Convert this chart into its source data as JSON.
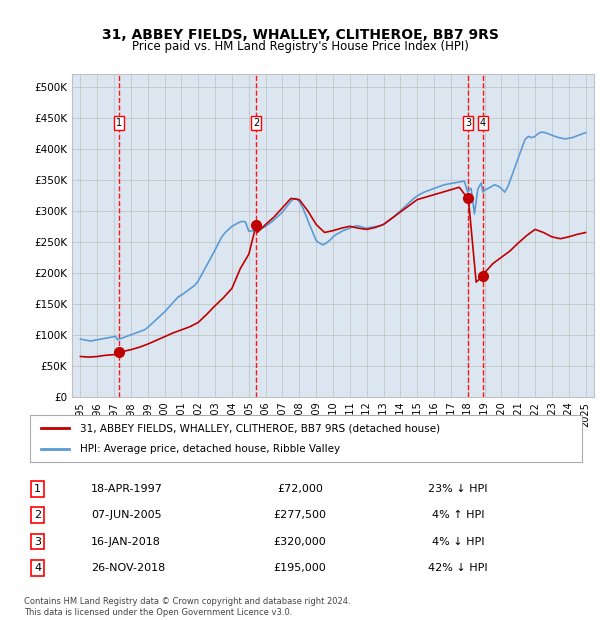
{
  "title": "31, ABBEY FIELDS, WHALLEY, CLITHEROE, BB7 9RS",
  "subtitle": "Price paid vs. HM Land Registry's House Price Index (HPI)",
  "legend_line1": "31, ABBEY FIELDS, WHALLEY, CLITHEROE, BB7 9RS (detached house)",
  "legend_line2": "HPI: Average price, detached house, Ribble Valley",
  "hpi_color": "#5b9bd5",
  "price_color": "#c00000",
  "sale_marker_color": "#c00000",
  "vline_color": "#ff0000",
  "background_color": "#dce6f1",
  "plot_bg": "#ffffff",
  "grid_color": "#c0c0c0",
  "ylim": [
    0,
    520000
  ],
  "yticks": [
    0,
    50000,
    100000,
    150000,
    200000,
    250000,
    300000,
    350000,
    400000,
    450000,
    500000
  ],
  "ytick_labels": [
    "£0",
    "£50K",
    "£100K",
    "£150K",
    "£200K",
    "£250K",
    "£300K",
    "£350K",
    "£400K",
    "£450K",
    "£500K"
  ],
  "xlim_start": 1994.5,
  "xlim_end": 2025.5,
  "xticks": [
    1995,
    1996,
    1997,
    1998,
    1999,
    2000,
    2001,
    2002,
    2003,
    2004,
    2005,
    2006,
    2007,
    2008,
    2009,
    2010,
    2011,
    2012,
    2013,
    2014,
    2015,
    2016,
    2017,
    2018,
    2019,
    2020,
    2021,
    2022,
    2023,
    2024,
    2025
  ],
  "sales": [
    {
      "label": "1",
      "date": 1997.3,
      "price": 72000,
      "text": "18-APR-1997",
      "price_str": "£72,000",
      "hpi_str": "23% ↓ HPI"
    },
    {
      "label": "2",
      "date": 2005.44,
      "price": 277500,
      "text": "07-JUN-2005",
      "price_str": "£277,500",
      "hpi_str": "4% ↑ HPI"
    },
    {
      "label": "3",
      "date": 2018.04,
      "price": 320000,
      "text": "16-JAN-2018",
      "price_str": "£320,000",
      "hpi_str": "4% ↓ HPI"
    },
    {
      "label": "4",
      "date": 2018.9,
      "price": 195000,
      "text": "26-NOV-2018",
      "price_str": "£195,000",
      "hpi_str": "42% ↓ HPI"
    }
  ],
  "footer": "Contains HM Land Registry data © Crown copyright and database right 2024.\nThis data is licensed under the Open Government Licence v3.0.",
  "hpi_data": {
    "years": [
      1995.0,
      1995.1,
      1995.2,
      1995.3,
      1995.4,
      1995.5,
      1995.6,
      1995.7,
      1995.8,
      1995.9,
      1996.0,
      1996.1,
      1996.2,
      1996.3,
      1996.4,
      1996.5,
      1996.6,
      1996.7,
      1996.8,
      1996.9,
      1997.0,
      1997.1,
      1997.2,
      1997.3,
      1997.4,
      1997.5,
      1997.6,
      1997.7,
      1997.8,
      1997.9,
      1998.0,
      1998.2,
      1998.4,
      1998.6,
      1998.8,
      1999.0,
      1999.2,
      1999.4,
      1999.6,
      1999.8,
      2000.0,
      2000.2,
      2000.4,
      2000.6,
      2000.8,
      2001.0,
      2001.2,
      2001.4,
      2001.6,
      2001.8,
      2002.0,
      2002.2,
      2002.4,
      2002.6,
      2002.8,
      2003.0,
      2003.2,
      2003.4,
      2003.6,
      2003.8,
      2004.0,
      2004.2,
      2004.4,
      2004.6,
      2004.8,
      2005.0,
      2005.2,
      2005.44,
      2005.6,
      2005.8,
      2006.0,
      2006.2,
      2006.4,
      2006.6,
      2006.8,
      2007.0,
      2007.2,
      2007.4,
      2007.6,
      2007.8,
      2008.0,
      2008.2,
      2008.4,
      2008.6,
      2008.8,
      2009.0,
      2009.2,
      2009.4,
      2009.6,
      2009.8,
      2010.0,
      2010.2,
      2010.4,
      2010.6,
      2010.8,
      2011.0,
      2011.2,
      2011.4,
      2011.6,
      2011.8,
      2012.0,
      2012.2,
      2012.4,
      2012.6,
      2012.8,
      2013.0,
      2013.2,
      2013.4,
      2013.6,
      2013.8,
      2014.0,
      2014.2,
      2014.4,
      2014.6,
      2014.8,
      2015.0,
      2015.2,
      2015.4,
      2015.6,
      2015.8,
      2016.0,
      2016.2,
      2016.4,
      2016.6,
      2016.8,
      2017.0,
      2017.2,
      2017.4,
      2017.6,
      2017.8,
      2018.0,
      2018.04,
      2018.2,
      2018.4,
      2018.6,
      2018.8,
      2018.9,
      2019.0,
      2019.2,
      2019.4,
      2019.6,
      2019.8,
      2020.0,
      2020.2,
      2020.4,
      2020.6,
      2020.8,
      2021.0,
      2021.2,
      2021.4,
      2021.6,
      2021.8,
      2022.0,
      2022.2,
      2022.4,
      2022.6,
      2022.8,
      2023.0,
      2023.2,
      2023.4,
      2023.6,
      2023.8,
      2024.0,
      2024.2,
      2024.4,
      2024.6,
      2024.8,
      2025.0
    ],
    "values": [
      93000,
      92500,
      92000,
      91500,
      91000,
      90500,
      90000,
      90500,
      91000,
      91500,
      92000,
      92500,
      93000,
      93500,
      94000,
      94500,
      95000,
      95500,
      96000,
      96500,
      97000,
      97500,
      92000,
      93200,
      94000,
      95000,
      96000,
      97000,
      98000,
      99000,
      100000,
      102000,
      104000,
      106000,
      108000,
      112000,
      117000,
      122000,
      127000,
      132000,
      137000,
      143000,
      149000,
      155000,
      161000,
      164000,
      168000,
      172000,
      176000,
      180000,
      187000,
      197000,
      207000,
      217000,
      227000,
      237000,
      248000,
      258000,
      265000,
      270000,
      275000,
      278000,
      281000,
      283000,
      282000,
      267000,
      268000,
      266500,
      270000,
      272000,
      275000,
      279000,
      283000,
      288000,
      293000,
      298000,
      305000,
      312000,
      318000,
      320000,
      315000,
      305000,
      292000,
      278000,
      265000,
      252000,
      248000,
      245000,
      248000,
      252000,
      258000,
      262000,
      265000,
      268000,
      270000,
      272000,
      274000,
      276000,
      275000,
      273000,
      272000,
      273000,
      274000,
      275000,
      276000,
      278000,
      282000,
      286000,
      290000,
      295000,
      300000,
      305000,
      310000,
      315000,
      320000,
      324000,
      327000,
      330000,
      332000,
      334000,
      336000,
      338000,
      340000,
      342000,
      343000,
      344000,
      345000,
      346000,
      347000,
      348000,
      330000,
      333000,
      336000,
      295000,
      335000,
      345000,
      330000,
      333000,
      336000,
      339000,
      342000,
      340000,
      336000,
      330000,
      340000,
      355000,
      370000,
      385000,
      400000,
      415000,
      420000,
      418000,
      420000,
      425000,
      427000,
      426000,
      424000,
      422000,
      420000,
      418000,
      417000,
      416000,
      417000,
      418000,
      420000,
      422000,
      424000,
      426000
    ]
  },
  "price_index_data": {
    "years": [
      1995.0,
      1995.5,
      1996.0,
      1996.5,
      1997.0,
      1997.3,
      1997.5,
      1998.0,
      1998.5,
      1999.0,
      1999.5,
      2000.0,
      2000.5,
      2001.0,
      2001.5,
      2002.0,
      2002.5,
      2003.0,
      2003.5,
      2004.0,
      2004.5,
      2005.0,
      2005.44,
      2005.5,
      2006.0,
      2006.5,
      2007.0,
      2007.5,
      2008.0,
      2008.5,
      2009.0,
      2009.5,
      2010.0,
      2010.5,
      2011.0,
      2011.5,
      2012.0,
      2012.5,
      2013.0,
      2013.5,
      2014.0,
      2014.5,
      2015.0,
      2015.5,
      2016.0,
      2016.5,
      2017.0,
      2017.5,
      2018.0,
      2018.04,
      2018.5,
      2018.9,
      2019.0,
      2019.5,
      2020.0,
      2020.5,
      2021.0,
      2021.5,
      2022.0,
      2022.5,
      2023.0,
      2023.5,
      2024.0,
      2024.5,
      2025.0
    ],
    "values": [
      65000,
      64000,
      65000,
      67000,
      68000,
      72000,
      73000,
      76000,
      80000,
      85000,
      91000,
      97000,
      103000,
      108000,
      113000,
      120000,
      133000,
      147000,
      160000,
      175000,
      207000,
      230000,
      277500,
      265000,
      278000,
      290000,
      305000,
      320000,
      318000,
      300000,
      278000,
      265000,
      268000,
      272000,
      275000,
      272000,
      270000,
      273000,
      278000,
      288000,
      298000,
      308000,
      318000,
      322000,
      326000,
      330000,
      334000,
      338000,
      320000,
      320000,
      185000,
      195000,
      200000,
      215000,
      225000,
      235000,
      248000,
      260000,
      270000,
      265000,
      258000,
      255000,
      258000,
      262000,
      265000
    ]
  }
}
